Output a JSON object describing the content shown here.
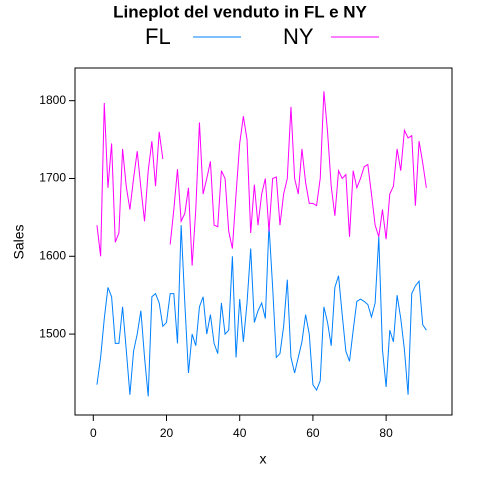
{
  "chart_data": {
    "type": "line",
    "title": "Lineplot del venduto in FL e NY",
    "xlabel": "x",
    "ylabel": "Sales",
    "x": [
      1,
      2,
      3,
      4,
      5,
      6,
      7,
      8,
      9,
      10,
      11,
      12,
      13,
      14,
      15,
      16,
      17,
      18,
      19,
      20,
      21,
      22,
      23,
      24,
      25,
      26,
      27,
      28,
      29,
      30,
      31,
      32,
      33,
      34,
      35,
      36,
      37,
      38,
      39,
      40,
      41,
      42,
      43,
      44,
      45,
      46,
      47,
      48,
      49,
      50,
      51,
      52,
      53,
      54,
      55,
      56,
      57,
      58,
      59,
      60,
      61,
      62,
      63,
      64,
      65,
      66,
      67,
      68,
      69,
      70,
      71,
      72,
      73,
      74,
      75,
      76,
      77,
      78,
      79,
      80,
      81,
      82,
      83,
      84,
      85,
      86,
      87,
      88,
      89,
      90,
      91
    ],
    "series": [
      {
        "name": "FL",
        "color": "#0080ff",
        "values": [
          1435,
          1470,
          1520,
          1560,
          1548,
          1488,
          1488,
          1535,
          1480,
          1422,
          1478,
          1500,
          1530,
          1470,
          1420,
          1548,
          1552,
          1540,
          1510,
          1515,
          1552,
          1552,
          1488,
          1640,
          1540,
          1450,
          1500,
          1485,
          1535,
          1548,
          1500,
          1525,
          1488,
          1475,
          1540,
          1500,
          1505,
          1600,
          1470,
          1545,
          1490,
          1540,
          1610,
          1515,
          1530,
          1540,
          1520,
          1640,
          1560,
          1470,
          1475,
          1510,
          1570,
          1470,
          1450,
          1470,
          1490,
          1525,
          1500,
          1435,
          1428,
          1440,
          1535,
          1515,
          1485,
          1560,
          1575,
          1525,
          1478,
          1465,
          1505,
          1542,
          1545,
          1542,
          1538,
          1522,
          1540,
          1625,
          1480,
          1432,
          1505,
          1490,
          1550,
          1520,
          1480,
          1422,
          1552,
          1562,
          1568,
          1512,
          1505
        ]
      },
      {
        "name": "NY",
        "color": "#ff00ff",
        "values": [
          1640,
          1600,
          1797,
          1688,
          1745,
          1618,
          1630,
          1738,
          1690,
          1660,
          1700,
          1735,
          1688,
          1645,
          1710,
          1748,
          1690,
          1760,
          1725,
          null,
          1615,
          1660,
          1712,
          1645,
          1655,
          1688,
          1588,
          1660,
          1772,
          1680,
          1700,
          1722,
          1640,
          1638,
          1710,
          1700,
          1632,
          1610,
          1680,
          1745,
          1780,
          1750,
          1630,
          1692,
          1640,
          1680,
          1700,
          1632,
          1700,
          1702,
          1640,
          1680,
          1700,
          1792,
          1700,
          1680,
          1738,
          1695,
          1668,
          1668,
          1665,
          1700,
          1812,
          1760,
          1690,
          1652,
          1710,
          1700,
          1705,
          1625,
          1710,
          1688,
          1700,
          1715,
          1718,
          1680,
          1640,
          1625,
          1660,
          1622,
          1680,
          1690,
          1738,
          1710,
          1762,
          1752,
          1755,
          1665,
          1748,
          1720,
          1688
        ]
      }
    ],
    "xlim": [
      -5,
      98
    ],
    "xticks": [
      0,
      20,
      40,
      60,
      80
    ],
    "ylim": [
      1396,
      1842
    ],
    "yticks": [
      1500,
      1600,
      1700,
      1800
    ],
    "legend": "top"
  }
}
